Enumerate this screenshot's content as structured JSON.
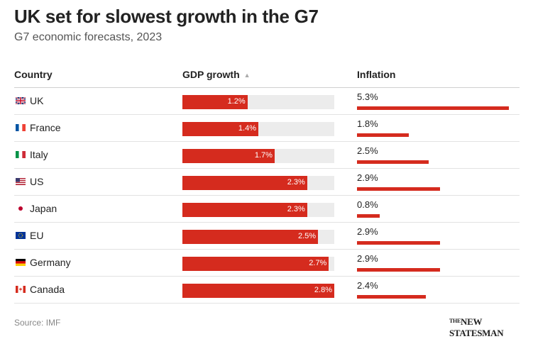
{
  "chart_data": {
    "type": "table",
    "title": "UK set for slowest growth in the G7",
    "subtitle": "G7 economic forecasts, 2023",
    "columns": [
      "Country",
      "GDP growth",
      "Inflation"
    ],
    "gdp_max": 2.8,
    "inflation_max": 5.3,
    "rows": [
      {
        "country": "UK",
        "flag": "uk-flag-icon",
        "gdp": 1.2,
        "gdp_label": "1.2%",
        "inflation": 5.3,
        "inflation_label": "5.3%"
      },
      {
        "country": "France",
        "flag": "france-flag-icon",
        "gdp": 1.4,
        "gdp_label": "1.4%",
        "inflation": 1.8,
        "inflation_label": "1.8%"
      },
      {
        "country": "Italy",
        "flag": "italy-flag-icon",
        "gdp": 1.7,
        "gdp_label": "1.7%",
        "inflation": 2.5,
        "inflation_label": "2.5%"
      },
      {
        "country": "US",
        "flag": "us-flag-icon",
        "gdp": 2.3,
        "gdp_label": "2.3%",
        "inflation": 2.9,
        "inflation_label": "2.9%"
      },
      {
        "country": "Japan",
        "flag": "japan-flag-icon",
        "gdp": 2.3,
        "gdp_label": "2.3%",
        "inflation": 0.8,
        "inflation_label": "0.8%"
      },
      {
        "country": "EU",
        "flag": "eu-flag-icon",
        "gdp": 2.5,
        "gdp_label": "2.5%",
        "inflation": 2.9,
        "inflation_label": "2.9%"
      },
      {
        "country": "Germany",
        "flag": "germany-flag-icon",
        "gdp": 2.7,
        "gdp_label": "2.7%",
        "inflation": 2.9,
        "inflation_label": "2.9%"
      },
      {
        "country": "Canada",
        "flag": "canada-flag-icon",
        "gdp": 2.8,
        "gdp_label": "2.8%",
        "inflation": 2.4,
        "inflation_label": "2.4%"
      }
    ],
    "source": "Source: IMF",
    "publisher_logo": "NEW STATESMAN",
    "bar_color": "#d52b1e"
  }
}
